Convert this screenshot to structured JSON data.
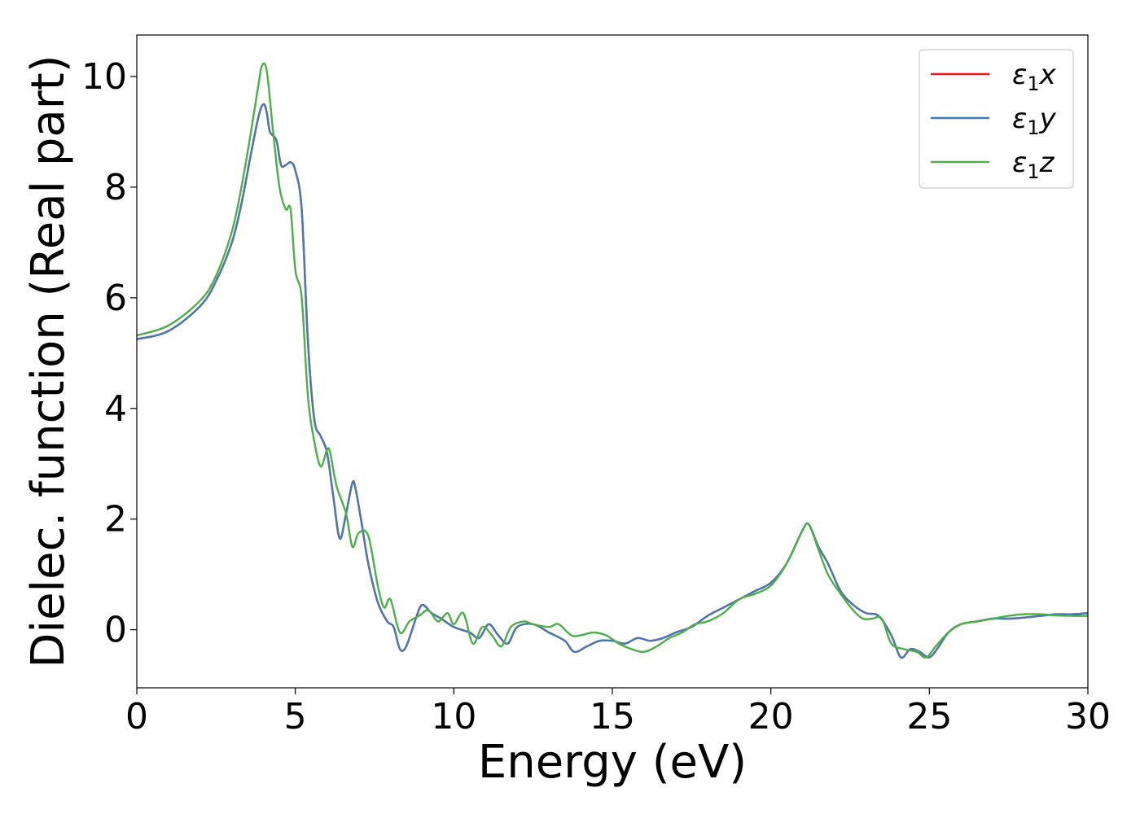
{
  "chart_data": {
    "type": "line",
    "xlabel": "Energy (eV)",
    "ylabel": "Dielec. function (Real part)",
    "xlim": [
      0,
      30
    ],
    "ylim": [
      -1.05,
      10.75
    ],
    "xticks": [
      "0",
      "5",
      "10",
      "15",
      "20",
      "25",
      "30"
    ],
    "yticks": [
      "0",
      "2",
      "4",
      "6",
      "8",
      "10"
    ],
    "grid": false,
    "legend": {
      "position": "top-right"
    },
    "series": [
      {
        "name": "ε₁x",
        "legend_label": {
          "base": "ε",
          "sub": "1",
          "tail": "x"
        },
        "color": "#e41a1c",
        "x": [
          0,
          1,
          2,
          2.5,
          3,
          3.3,
          3.6,
          3.85,
          4.0,
          4.1,
          4.2,
          4.4,
          4.55,
          4.7,
          4.85,
          5.0,
          5.2,
          5.4,
          5.6,
          5.8,
          6.0,
          6.2,
          6.4,
          6.6,
          6.8,
          6.9,
          7.1,
          7.3,
          7.6,
          7.9,
          8.1,
          8.3,
          8.5,
          8.8,
          9.0,
          9.3,
          9.6,
          10.0,
          10.5,
          10.8,
          11.1,
          11.4,
          11.7,
          12.0,
          12.5,
          13.0,
          13.5,
          13.8,
          14.2,
          14.6,
          15.0,
          15.4,
          15.8,
          16.2,
          16.6,
          17.0,
          17.5,
          18.0,
          18.5,
          19.0,
          19.5,
          20.0,
          20.5,
          21.0,
          21.2,
          21.5,
          21.8,
          22.2,
          22.6,
          23.0,
          23.4,
          23.8,
          24.1,
          24.4,
          24.7,
          25.0,
          25.3,
          25.6,
          26.0,
          26.5,
          27.0,
          27.5,
          28.0,
          28.5,
          29.0,
          29.5,
          30.0
        ],
        "y": [
          5.25,
          5.4,
          5.85,
          6.3,
          7.0,
          7.7,
          8.6,
          9.3,
          9.5,
          9.35,
          9.0,
          8.85,
          8.4,
          8.4,
          8.45,
          8.3,
          7.6,
          5.2,
          3.8,
          3.5,
          3.2,
          2.4,
          1.65,
          2.1,
          2.65,
          2.55,
          1.9,
          1.2,
          0.5,
          0.15,
          0.05,
          -0.35,
          -0.3,
          0.2,
          0.45,
          0.3,
          0.2,
          0.05,
          -0.05,
          -0.15,
          0.1,
          -0.1,
          -0.25,
          0.05,
          0.1,
          -0.05,
          -0.2,
          -0.4,
          -0.3,
          -0.2,
          -0.2,
          -0.25,
          -0.15,
          -0.2,
          -0.15,
          -0.05,
          0.05,
          0.25,
          0.4,
          0.55,
          0.7,
          0.85,
          1.2,
          1.8,
          1.9,
          1.5,
          1.2,
          0.7,
          0.45,
          0.3,
          0.25,
          -0.1,
          -0.5,
          -0.35,
          -0.4,
          -0.5,
          -0.3,
          -0.05,
          0.1,
          0.15,
          0.2,
          0.2,
          0.22,
          0.25,
          0.28,
          0.28,
          0.3
        ]
      },
      {
        "name": "ε₁y",
        "legend_label": {
          "base": "ε",
          "sub": "1",
          "tail": "y"
        },
        "color": "#4678b4",
        "x": [
          0,
          1,
          2,
          2.5,
          3,
          3.3,
          3.6,
          3.85,
          4.0,
          4.1,
          4.2,
          4.4,
          4.55,
          4.7,
          4.85,
          5.0,
          5.2,
          5.4,
          5.6,
          5.8,
          6.0,
          6.2,
          6.4,
          6.6,
          6.8,
          6.9,
          7.1,
          7.3,
          7.6,
          7.9,
          8.1,
          8.3,
          8.5,
          8.8,
          9.0,
          9.3,
          9.6,
          10.0,
          10.5,
          10.8,
          11.1,
          11.4,
          11.7,
          12.0,
          12.5,
          13.0,
          13.5,
          13.8,
          14.2,
          14.6,
          15.0,
          15.4,
          15.8,
          16.2,
          16.6,
          17.0,
          17.5,
          18.0,
          18.5,
          19.0,
          19.5,
          20.0,
          20.5,
          21.0,
          21.2,
          21.5,
          21.8,
          22.2,
          22.6,
          23.0,
          23.4,
          23.8,
          24.1,
          24.4,
          24.7,
          25.0,
          25.3,
          25.6,
          26.0,
          26.5,
          27.0,
          27.5,
          28.0,
          28.5,
          29.0,
          29.5,
          30.0
        ],
        "y": [
          5.25,
          5.4,
          5.85,
          6.3,
          7.0,
          7.7,
          8.6,
          9.3,
          9.5,
          9.35,
          9.0,
          8.85,
          8.4,
          8.4,
          8.45,
          8.3,
          7.6,
          5.2,
          3.8,
          3.5,
          3.2,
          2.4,
          1.65,
          2.1,
          2.65,
          2.55,
          1.9,
          1.2,
          0.5,
          0.15,
          0.05,
          -0.35,
          -0.3,
          0.2,
          0.45,
          0.3,
          0.2,
          0.05,
          -0.05,
          -0.15,
          0.1,
          -0.1,
          -0.25,
          0.05,
          0.1,
          -0.05,
          -0.2,
          -0.4,
          -0.3,
          -0.2,
          -0.2,
          -0.25,
          -0.15,
          -0.2,
          -0.15,
          -0.05,
          0.05,
          0.25,
          0.4,
          0.55,
          0.7,
          0.85,
          1.2,
          1.8,
          1.9,
          1.5,
          1.2,
          0.7,
          0.45,
          0.3,
          0.25,
          -0.1,
          -0.5,
          -0.35,
          -0.4,
          -0.5,
          -0.3,
          -0.05,
          0.1,
          0.15,
          0.2,
          0.2,
          0.22,
          0.25,
          0.28,
          0.28,
          0.3
        ]
      },
      {
        "name": "ε₁z",
        "legend_label": {
          "base": "ε",
          "sub": "1",
          "tail": "z"
        },
        "color": "#4daf4a",
        "x": [
          0,
          1,
          2,
          2.5,
          3,
          3.3,
          3.6,
          3.85,
          3.95,
          4.1,
          4.3,
          4.5,
          4.7,
          4.85,
          5.0,
          5.2,
          5.4,
          5.6,
          5.8,
          6.0,
          6.1,
          6.3,
          6.6,
          6.8,
          7.0,
          7.3,
          7.6,
          7.8,
          8.0,
          8.3,
          8.6,
          8.9,
          9.2,
          9.5,
          9.8,
          10.0,
          10.3,
          10.6,
          10.9,
          11.2,
          11.5,
          11.8,
          12.2,
          12.5,
          13.0,
          13.3,
          13.7,
          14.0,
          14.4,
          14.8,
          15.2,
          15.6,
          16.0,
          16.4,
          16.8,
          17.2,
          17.6,
          18.0,
          18.5,
          19.0,
          19.5,
          20.0,
          20.5,
          21.0,
          21.2,
          21.5,
          21.8,
          22.2,
          22.6,
          22.9,
          23.2,
          23.5,
          23.8,
          24.2,
          24.6,
          24.9,
          25.2,
          25.6,
          26.0,
          26.5,
          27.0,
          27.5,
          28.0,
          28.5,
          29.0,
          29.5,
          30.0
        ],
        "y": [
          5.32,
          5.5,
          5.95,
          6.4,
          7.2,
          8.0,
          9.0,
          9.9,
          10.2,
          10.1,
          9.0,
          8.0,
          7.6,
          7.6,
          6.5,
          6.0,
          4.2,
          3.4,
          2.95,
          3.25,
          3.2,
          2.6,
          2.1,
          1.5,
          1.75,
          1.7,
          0.8,
          0.4,
          0.55,
          -0.05,
          0.15,
          0.25,
          0.35,
          0.15,
          0.3,
          0.1,
          0.3,
          -0.25,
          0.05,
          -0.1,
          -0.3,
          0.05,
          0.15,
          0.1,
          0.05,
          0.1,
          -0.1,
          -0.1,
          -0.05,
          -0.1,
          -0.25,
          -0.35,
          -0.4,
          -0.3,
          -0.15,
          -0.05,
          0.1,
          0.15,
          0.3,
          0.55,
          0.65,
          0.8,
          1.2,
          1.8,
          1.9,
          1.45,
          1.0,
          0.65,
          0.35,
          0.2,
          0.2,
          0.2,
          -0.25,
          -0.35,
          -0.4,
          -0.5,
          -0.3,
          -0.05,
          0.1,
          0.15,
          0.2,
          0.25,
          0.28,
          0.28,
          0.26,
          0.25,
          0.25
        ]
      }
    ]
  }
}
